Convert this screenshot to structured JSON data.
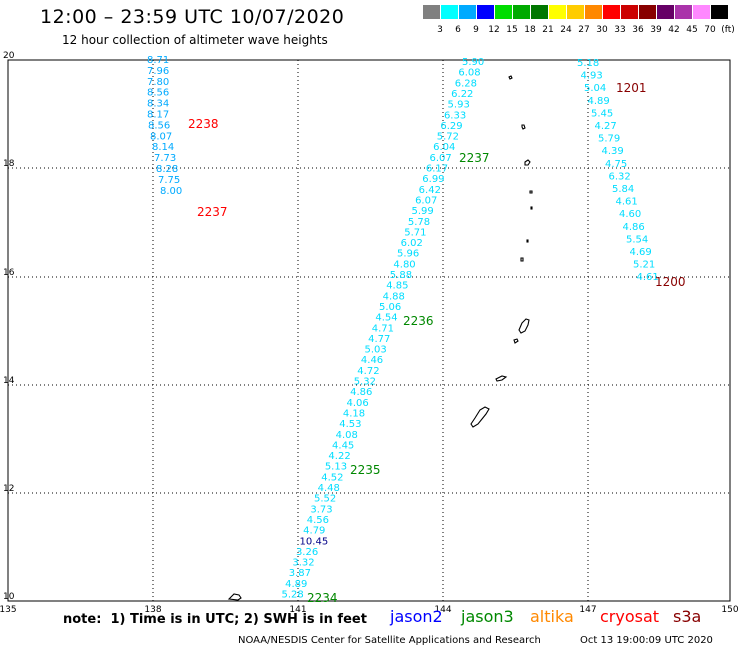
{
  "header": {
    "title": "12:00 – 23:59 UTC 10/07/2020",
    "subtitle": "12 hour collection of altimeter wave heights"
  },
  "color_scale": {
    "swatches": [
      {
        "label": "3",
        "color": "#808080"
      },
      {
        "label": "6",
        "color": "#00ffff"
      },
      {
        "label": "9",
        "color": "#00aaff"
      },
      {
        "label": "12",
        "color": "#0000ff"
      },
      {
        "label": "15",
        "color": "#00dd00"
      },
      {
        "label": "18",
        "color": "#00aa00"
      },
      {
        "label": "21",
        "color": "#007700"
      },
      {
        "label": "24",
        "color": "#ffff00"
      },
      {
        "label": "27",
        "color": "#ffcc00"
      },
      {
        "label": "30",
        "color": "#ff8800"
      },
      {
        "label": "33",
        "color": "#ff0000"
      },
      {
        "label": "36",
        "color": "#cc0000"
      },
      {
        "label": "39",
        "color": "#880000"
      },
      {
        "label": "42",
        "color": "#660066"
      },
      {
        "label": "45",
        "color": "#aa33aa"
      },
      {
        "label": "70",
        "color": "#ff88ff"
      },
      {
        "label": "(ft)",
        "color": "#000000"
      }
    ]
  },
  "axes": {
    "lon_labels": [
      "135",
      "138",
      "141",
      "144",
      "147",
      "150"
    ],
    "lat_labels": [
      "20",
      "18",
      "16",
      "14",
      "12",
      "10"
    ]
  },
  "colors": {
    "value_text": "#00aaff",
    "track_text": "#00ddff",
    "jason2": "#0000ff",
    "jason3": "#008800",
    "altika": "#ff8800",
    "cryosat": "#ff0000",
    "s3a": "#880000",
    "dark_value": "#000088"
  },
  "tracks": [
    {
      "name": "left",
      "values": [
        "8.71",
        "7.96",
        "7.80",
        "8.56",
        "8.34",
        "8.17",
        "8.56",
        "8.07",
        "8.14",
        "7.73",
        "8.28",
        "7.75",
        "8.00"
      ],
      "times": [
        {
          "label": "2238",
          "satellite": "cryosat"
        },
        {
          "label": "2237",
          "satellite": "cryosat"
        }
      ]
    },
    {
      "name": "center",
      "values": [
        "5.90",
        "6.08",
        "6.28",
        "6.22",
        "5.93",
        "6.33",
        "6.29",
        "5.72",
        "6.04",
        "6.07",
        "6.17",
        "6.99",
        "6.42",
        "6.07",
        "5.99",
        "5.78",
        "5.71",
        "6.02",
        "5.96",
        "4.80",
        "5.88",
        "4.85",
        "4.88",
        "5.06",
        "4.54",
        "4.71",
        "4.77",
        "5.03",
        "4.46",
        "4.72",
        "5.32",
        "4.86",
        "4.06",
        "4.18",
        "4.53",
        "4.08",
        "4.45",
        "4.22",
        "5.13",
        "4.52",
        "4.48",
        "5.52",
        "3.73",
        "4.56",
        "4.79",
        "10.45",
        "3.26",
        "3.32",
        "3.87",
        "4.89",
        "5.28"
      ],
      "times": [
        {
          "label": "2237",
          "satellite": "jason3"
        },
        {
          "label": "2236",
          "satellite": "jason3"
        },
        {
          "label": "2235",
          "satellite": "jason3"
        },
        {
          "label": "2234",
          "satellite": "jason3"
        }
      ]
    },
    {
      "name": "right",
      "values": [
        "5.18",
        "4.93",
        "5.04",
        "4.89",
        "5.45",
        "4.27",
        "5.79",
        "4.39",
        "4.75",
        "6.32",
        "5.84",
        "4.61",
        "4.60",
        "4.86",
        "5.54",
        "4.69",
        "5.21",
        "4.61"
      ],
      "times": [
        {
          "label": "1201",
          "satellite": "s3a"
        },
        {
          "label": "1200",
          "satellite": "s3a"
        }
      ]
    }
  ],
  "legend": {
    "note": "note:  1) Time is in UTC; 2) SWH is in feet",
    "satellites": [
      {
        "name": "jason2",
        "key": "jason2"
      },
      {
        "name": "jason3",
        "key": "jason3"
      },
      {
        "name": "altika",
        "key": "altika"
      },
      {
        "name": "cryosat",
        "key": "cryosat"
      },
      {
        "name": "s3a",
        "key": "s3a"
      }
    ]
  },
  "footer": {
    "credit": "NOAA/NESDIS Center for Satellite Applications and Research",
    "timestamp": "Oct 13 19:00:09 UTC 2020"
  }
}
